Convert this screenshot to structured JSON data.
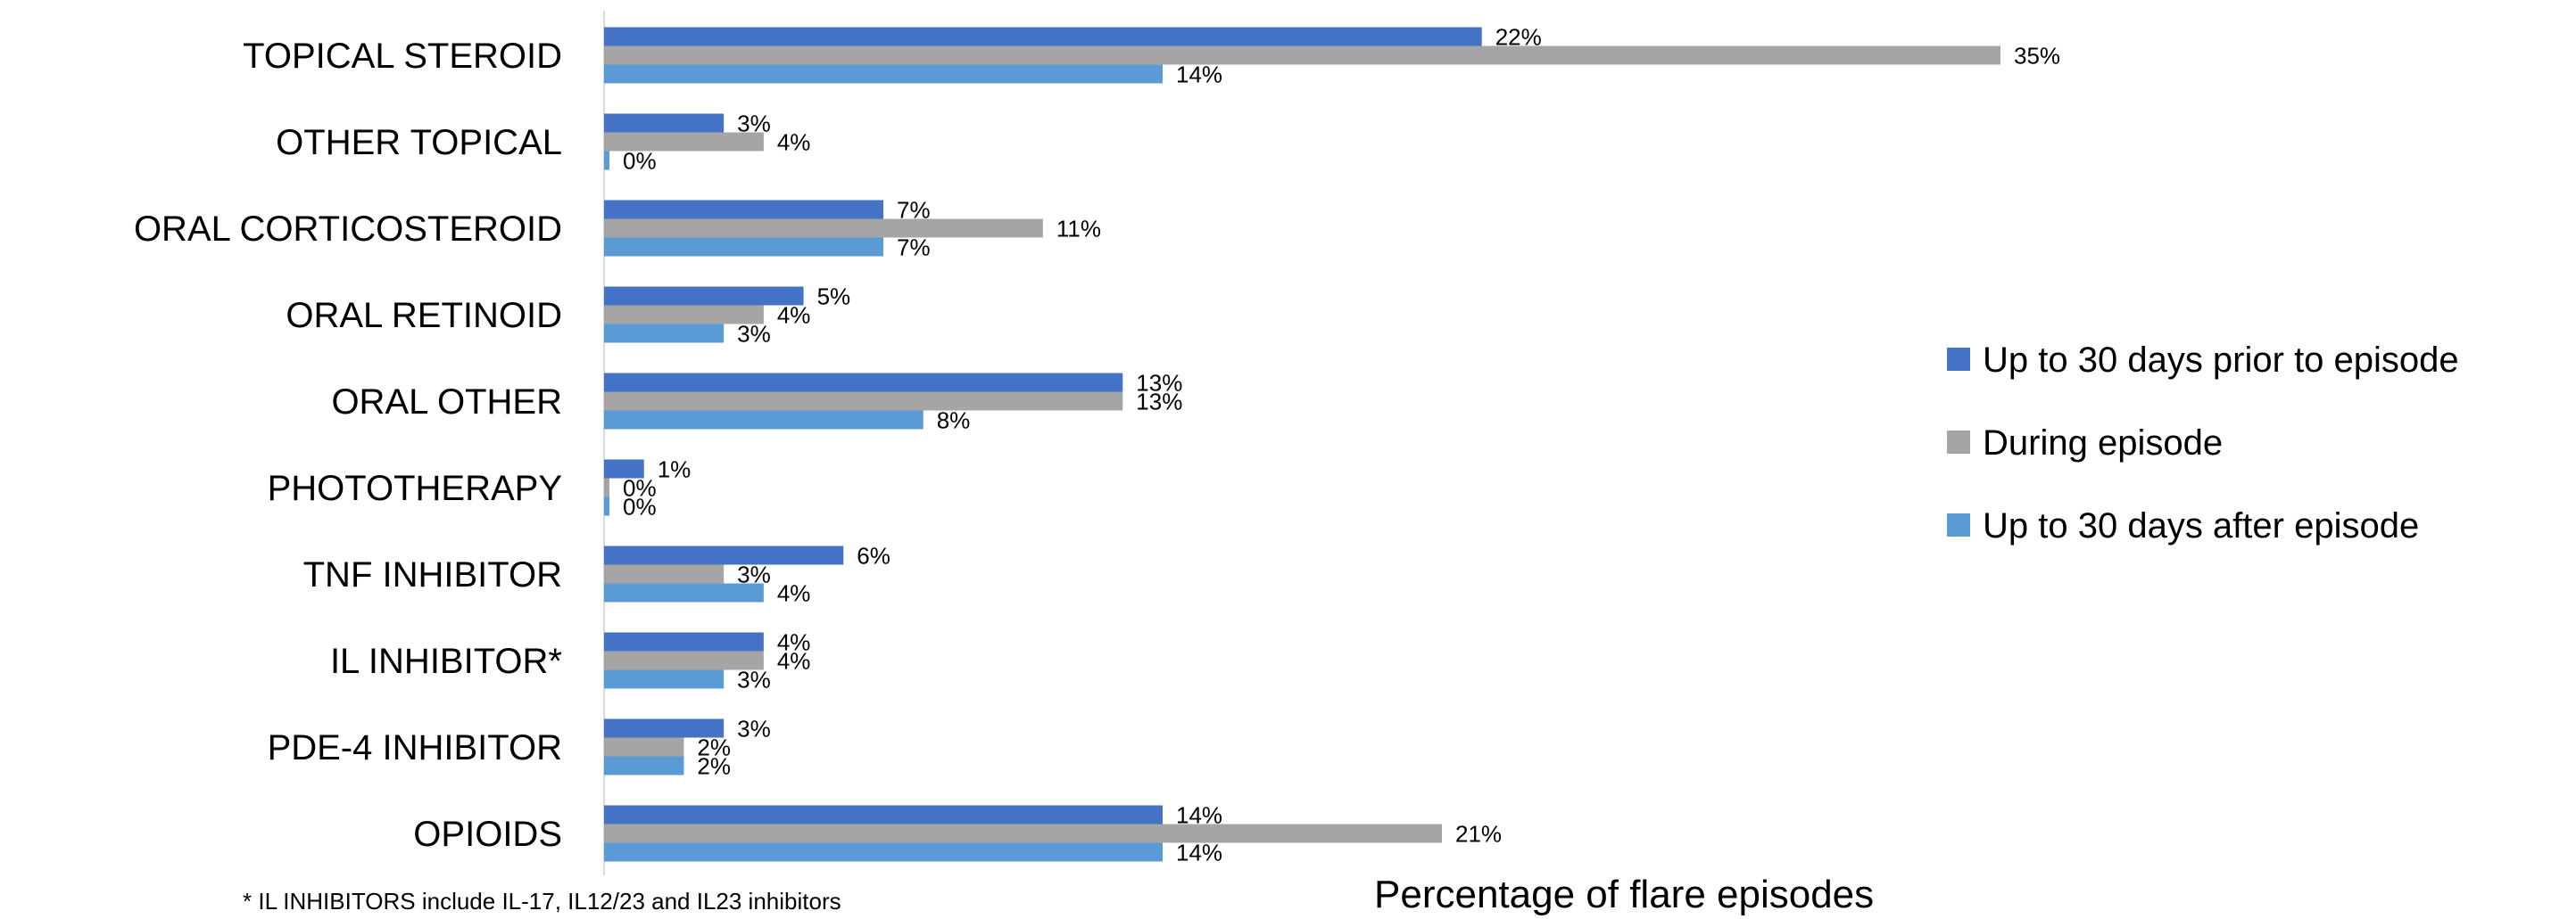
{
  "chart_data": {
    "type": "bar",
    "orientation": "horizontal",
    "categories": [
      "TOPICAL STEROID",
      "OTHER TOPICAL",
      "ORAL CORTICOSTEROID",
      "ORAL RETINOID",
      "ORAL OTHER",
      "PHOTOTHERAPY",
      "TNF INHIBITOR",
      "IL INHIBITOR*",
      "PDE-4 INHIBITOR",
      "OPIOIDS"
    ],
    "series": [
      {
        "name": "Up to 30 days prior to episode",
        "color": "#4472C4",
        "values": [
          22,
          3,
          7,
          5,
          13,
          1,
          6,
          4,
          3,
          14
        ]
      },
      {
        "name": "During episode",
        "color": "#A5A5A5",
        "values": [
          35,
          4,
          11,
          4,
          13,
          0,
          3,
          4,
          2,
          21
        ]
      },
      {
        "name": "Up to 30 days after episode",
        "color": "#5B9BD5",
        "values": [
          14,
          0,
          7,
          3,
          8,
          0,
          4,
          3,
          2,
          14
        ]
      }
    ],
    "value_suffix": "%",
    "xlabel": "Percentage of flare episodes",
    "ylabel": "",
    "xlim": [
      0,
      35
    ],
    "grid": false,
    "legend_position": "right"
  },
  "footnote": "* IL INHIBITORS include IL-17, IL12/23 and IL23 inhibitors"
}
